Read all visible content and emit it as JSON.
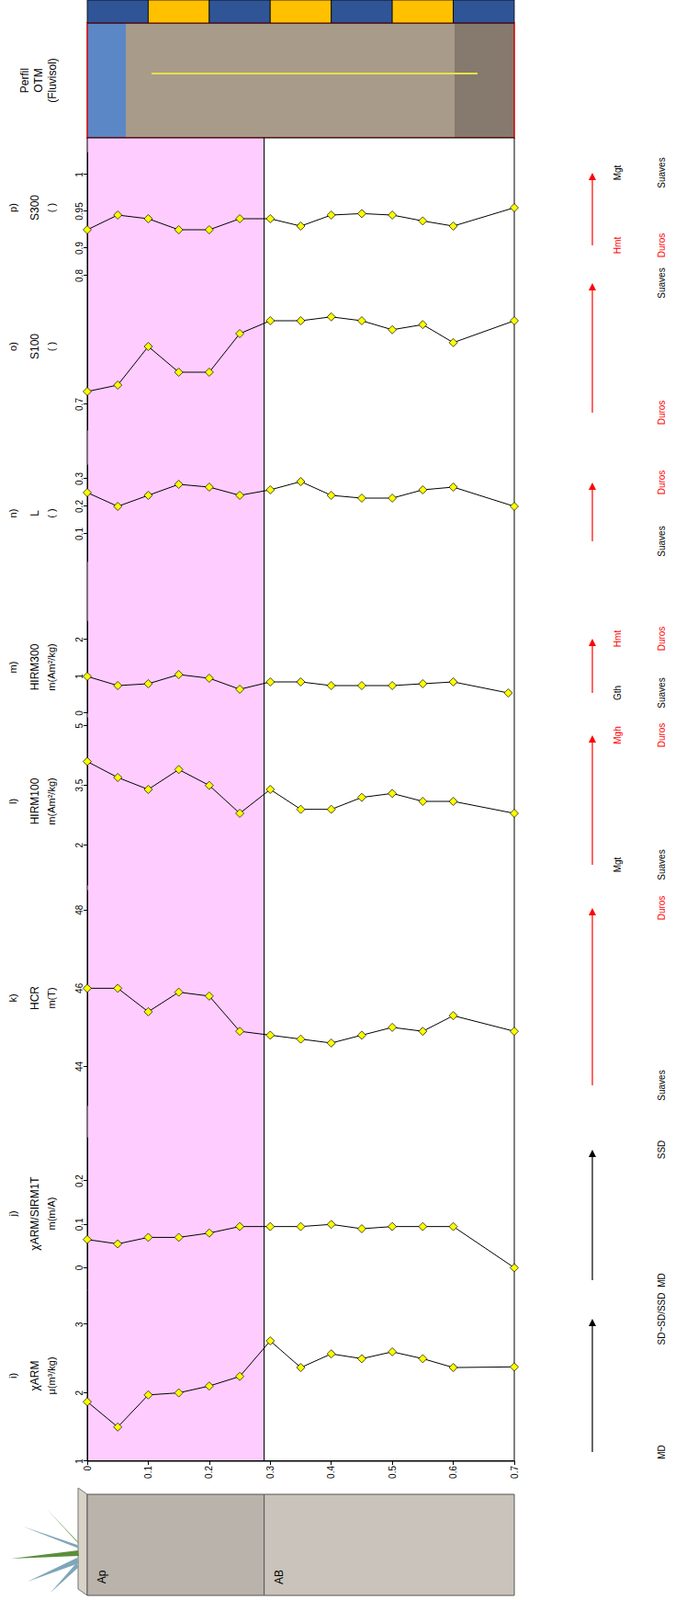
{
  "chart_data": [
    {
      "type": "line",
      "letter": "i)",
      "title": "χARM",
      "unit": "μ(m³/kg)",
      "x": [
        0,
        0.05,
        0.1,
        0.15,
        0.2,
        0.25,
        0.3,
        0.35,
        0.4,
        0.45,
        0.5,
        0.55,
        0.6,
        0.7
      ],
      "values": [
        1.87,
        1.5,
        1.97,
        2.0,
        2.1,
        2.24,
        2.76,
        2.37,
        2.57,
        2.5,
        2.6,
        2.5,
        2.37,
        2.38
      ],
      "xlim": [
        0,
        0.7
      ],
      "xticks": [
        0,
        0.1,
        0.2,
        0.3,
        0.4,
        0.5,
        0.6,
        0.7
      ],
      "ylim": [
        1,
        3.5
      ],
      "yticks": [
        1,
        2,
        3
      ],
      "grid": false,
      "marker": "diamond",
      "color": "#ffff00",
      "line_style": "solid",
      "annotations": {
        "color": "#000000",
        "low": [
          {
            "text": "MD",
            "color": "#000000"
          }
        ],
        "high": [
          {
            "text": "SD~SD/SSD",
            "color": "#000000"
          }
        ]
      }
    },
    {
      "type": "line",
      "letter": "j)",
      "title": "χARM/SIRM1T",
      "unit": "m(m/A)",
      "x": [
        0,
        0.05,
        0.1,
        0.15,
        0.2,
        0.25,
        0.3,
        0.35,
        0.4,
        0.45,
        0.5,
        0.55,
        0.6,
        0.7
      ],
      "values": [
        0.065,
        0.055,
        0.07,
        0.07,
        0.08,
        0.095,
        0.095,
        0.095,
        0.1,
        0.09,
        0.095,
        0.095,
        0.095,
        0
      ],
      "xlim": [
        0,
        0.7
      ],
      "ylim": [
        -0.05,
        0.3
      ],
      "yticks": [
        0,
        0.1,
        0.2
      ],
      "grid": false,
      "tick_labels": "y",
      "marker": "diamond",
      "color": "#ffff00",
      "line_style": "solid",
      "annotations": {
        "color": "#000000",
        "low": [
          {
            "text": "MD",
            "color": "#000000"
          }
        ],
        "high": [
          {
            "text": "SSD",
            "color": "#000000"
          }
        ]
      }
    },
    {
      "type": "line",
      "letter": "k)",
      "title": "HCR",
      "unit": "m(T)",
      "x": [
        0,
        0.05,
        0.1,
        0.15,
        0.2,
        0.25,
        0.3,
        0.35,
        0.4,
        0.45,
        0.5,
        0.55,
        0.6,
        0.7
      ],
      "values": [
        46,
        46,
        45.4,
        45.9,
        45.8,
        44.9,
        44.8,
        44.7,
        44.6,
        44.8,
        45,
        44.9,
        45.3,
        44.9
      ],
      "xlim": [
        0,
        0.7
      ],
      "ylim": [
        43,
        48.5
      ],
      "yticks": [
        44,
        46,
        48
      ],
      "grid": false,
      "tick_labels": "y",
      "marker": "diamond",
      "color": "#ffff00",
      "line_style": "solid",
      "annotations": {
        "color": "#ff0000",
        "low": [
          {
            "text": "Suaves",
            "color": "#000000"
          }
        ],
        "high": [
          {
            "text": "Duros",
            "color": "#ff0000"
          }
        ]
      }
    },
    {
      "type": "line",
      "letter": "l)",
      "title": "HIRM100",
      "unit": "m(Am²/kg)",
      "x": [
        0,
        0.05,
        0.1,
        0.15,
        0.2,
        0.25,
        0.3,
        0.35,
        0.4,
        0.45,
        0.5,
        0.55,
        0.6,
        0.7
      ],
      "values": [
        4.1,
        3.7,
        3.4,
        3.9,
        3.5,
        2.8,
        3.4,
        2.9,
        2.9,
        3.2,
        3.3,
        3.1,
        3.1,
        2.8
      ],
      "xlim": [
        0,
        0.7
      ],
      "ylim": [
        1,
        5.2
      ],
      "yticks": [
        2,
        3.5,
        5
      ],
      "grid": false,
      "tick_labels": "y",
      "marker": "diamond",
      "color": "#ffff00",
      "line_style": "solid",
      "annotations": {
        "color": "#ff0000",
        "low": [
          {
            "text": "Mgt",
            "color": "#000000"
          },
          {
            "text": "Suaves",
            "color": "#000000"
          }
        ],
        "high": [
          {
            "text": "Mgh",
            "color": "#ff0000"
          },
          {
            "text": "Duros",
            "color": "#ff0000"
          }
        ]
      }
    },
    {
      "type": "line",
      "letter": "m)",
      "title": "HIRM300",
      "unit": "m(Am²/kg)",
      "x": [
        0,
        0.05,
        0.1,
        0.15,
        0.2,
        0.25,
        0.3,
        0.35,
        0.4,
        0.45,
        0.5,
        0.55,
        0.6,
        0.69
      ],
      "values": [
        1.0,
        0.75,
        0.8,
        1.05,
        0.95,
        0.65,
        0.85,
        0.85,
        0.75,
        0.75,
        0.75,
        0.8,
        0.85,
        0.55
      ],
      "xlim": [
        0,
        0.7
      ],
      "ylim": [
        0,
        2.5
      ],
      "yticks": [
        0,
        1,
        2
      ],
      "grid": false,
      "tick_labels": "y",
      "marker": "diamond",
      "color": "#ffff00",
      "line_style": "solid",
      "annotations": {
        "color": "#ff0000",
        "low": [
          {
            "text": "Gth",
            "color": "#000000"
          },
          {
            "text": "Suaves",
            "color": "#000000"
          }
        ],
        "high": [
          {
            "text": "Hmt",
            "color": "#ff0000"
          },
          {
            "text": "Duros",
            "color": "#ff0000"
          }
        ]
      }
    },
    {
      "type": "line",
      "letter": "n)",
      "title": "L",
      "unit": "( )",
      "x": [
        0,
        0.05,
        0.1,
        0.15,
        0.2,
        0.25,
        0.3,
        0.35,
        0.4,
        0.45,
        0.5,
        0.55,
        0.6,
        0.7
      ],
      "values": [
        0.25,
        0.2,
        0.24,
        0.28,
        0.27,
        0.24,
        0.26,
        0.29,
        0.24,
        0.23,
        0.23,
        0.26,
        0.27,
        0.2
      ],
      "xlim": [
        0,
        0.7
      ],
      "ylim": [
        0,
        0.35
      ],
      "yticks": [
        0.1,
        0.2,
        0.3
      ],
      "grid": false,
      "tick_labels": "y",
      "marker": "diamond",
      "color": "#ffff00",
      "line_style": "solid",
      "annotations": {
        "color": "#ff0000",
        "low": [
          {
            "text": "Suaves",
            "color": "#000000"
          }
        ],
        "high": [
          {
            "text": "Duros",
            "color": "#ff0000"
          }
        ]
      }
    },
    {
      "type": "line",
      "letter": "o)",
      "title": "S100",
      "unit": "( )",
      "x": [
        0,
        0.05,
        0.1,
        0.15,
        0.2,
        0.25,
        0.3,
        0.35,
        0.4,
        0.45,
        0.5,
        0.55,
        0.6,
        0.7
      ],
      "values": [
        0.71,
        0.715,
        0.745,
        0.725,
        0.725,
        0.755,
        0.765,
        0.765,
        0.768,
        0.765,
        0.758,
        0.762,
        0.748,
        0.765
      ],
      "xlim": [
        0,
        0.7
      ],
      "ylim": [
        0.68,
        0.81
      ],
      "yticks": [
        0.7,
        0.8
      ],
      "grid": false,
      "tick_labels": "y",
      "marker": "diamond",
      "color": "#ffff00",
      "line_style": "solid",
      "annotations": {
        "color": "#ff0000",
        "low": [
          {
            "text": "Duros",
            "color": "#ff0000"
          }
        ],
        "high": [
          {
            "text": "Suaves",
            "color": "#000000"
          }
        ]
      }
    },
    {
      "type": "line",
      "letter": "p)",
      "title": "S300",
      "unit": "( )",
      "x": [
        0,
        0.05,
        0.1,
        0.15,
        0.2,
        0.25,
        0.3,
        0.35,
        0.4,
        0.45,
        0.5,
        0.55,
        0.6,
        0.7
      ],
      "values": [
        0.925,
        0.945,
        0.94,
        0.925,
        0.925,
        0.94,
        0.94,
        0.93,
        0.945,
        0.947,
        0.945,
        0.937,
        0.93,
        0.955
      ],
      "xlim": [
        0,
        0.7
      ],
      "ylim": [
        0.88,
        1.03
      ],
      "yticks": [
        0.9,
        0.95,
        1
      ],
      "grid": false,
      "tick_labels": "y",
      "marker": "diamond",
      "color": "#ffff00",
      "line_style": "solid",
      "annotations": {
        "color": "#ff0000",
        "low": [
          {
            "text": "Hmt",
            "color": "#ff0000"
          },
          {
            "text": "Duros",
            "color": "#ff0000"
          }
        ],
        "high": [
          {
            "text": "Mgt",
            "color": "#000000"
          },
          {
            "text": "Suaves",
            "color": "#000000"
          }
        ]
      }
    }
  ],
  "profile": {
    "horizons": [
      {
        "name": "Ap",
        "top": 0,
        "bottom": 0.29,
        "color": "#ffccff"
      },
      {
        "name": "AB",
        "top": 0.29,
        "bottom": 0.7,
        "color": "#ffffff"
      }
    ]
  },
  "photo_title": "Perfil OTM (Fluvisol)"
}
